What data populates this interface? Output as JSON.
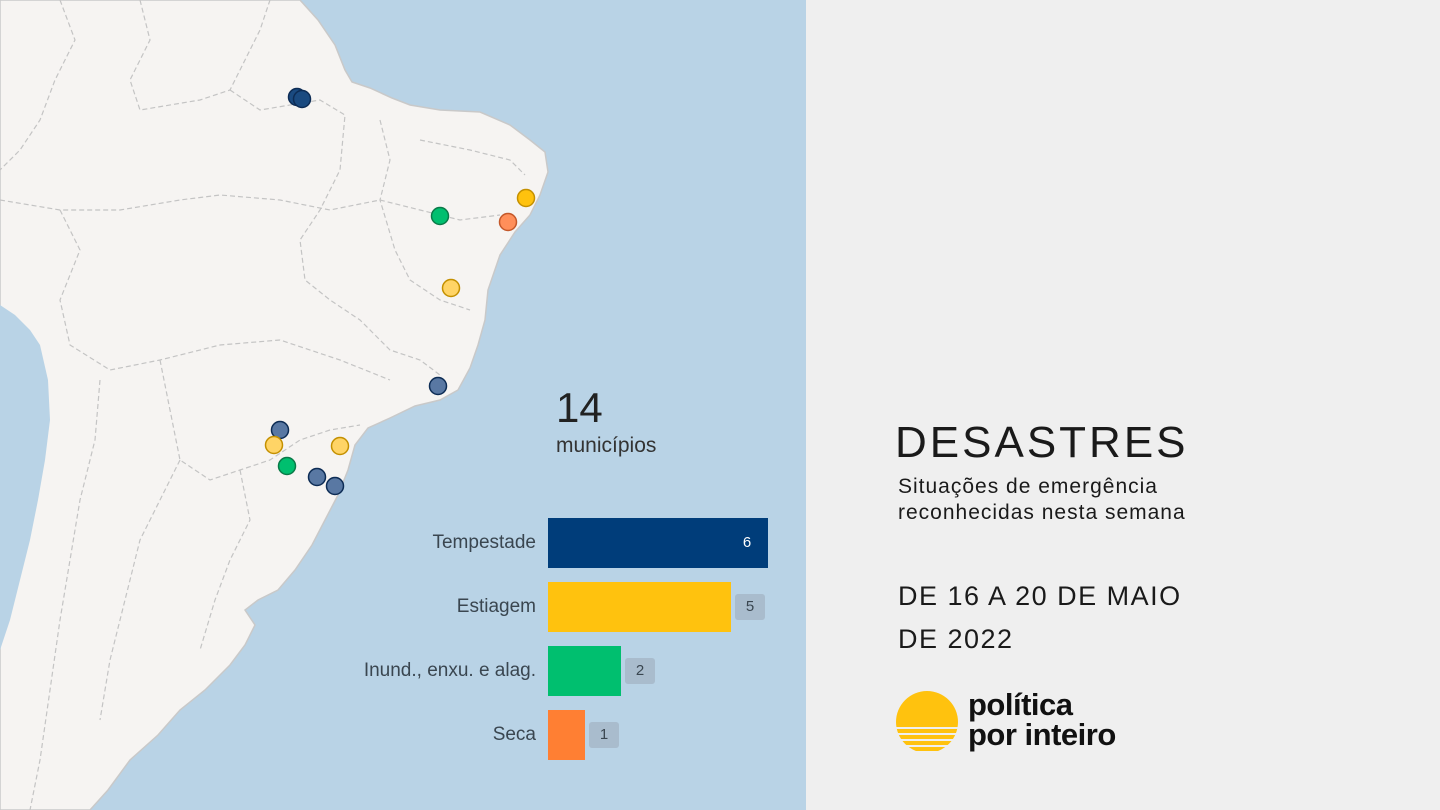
{
  "map": {
    "total": {
      "value": "14",
      "label": "municípios"
    },
    "legend_colors": {
      "Tempestade": "#003d7a",
      "Estiagem": "#ffc20e",
      "Inund., enxu. e alag.": "#00bf6f",
      "Seca": "#ff7f33"
    }
  },
  "chart_data": {
    "type": "bar",
    "orientation": "horizontal",
    "categories": [
      "Tempestade",
      "Estiagem",
      "Inund., enxu. e alag.",
      "Seca"
    ],
    "values": [
      6,
      5,
      2,
      1
    ],
    "colors": [
      "#003d7a",
      "#ffc20e",
      "#00bf6f",
      "#ff7f33"
    ]
  },
  "panel": {
    "title": "DESASTRES",
    "subtitle": "Situações de emergência reconhecidas nesta semana",
    "dates": "DE 16 A 20 DE MAIO DE 2022",
    "logo_line1": "política",
    "logo_line2": "por inteiro"
  }
}
